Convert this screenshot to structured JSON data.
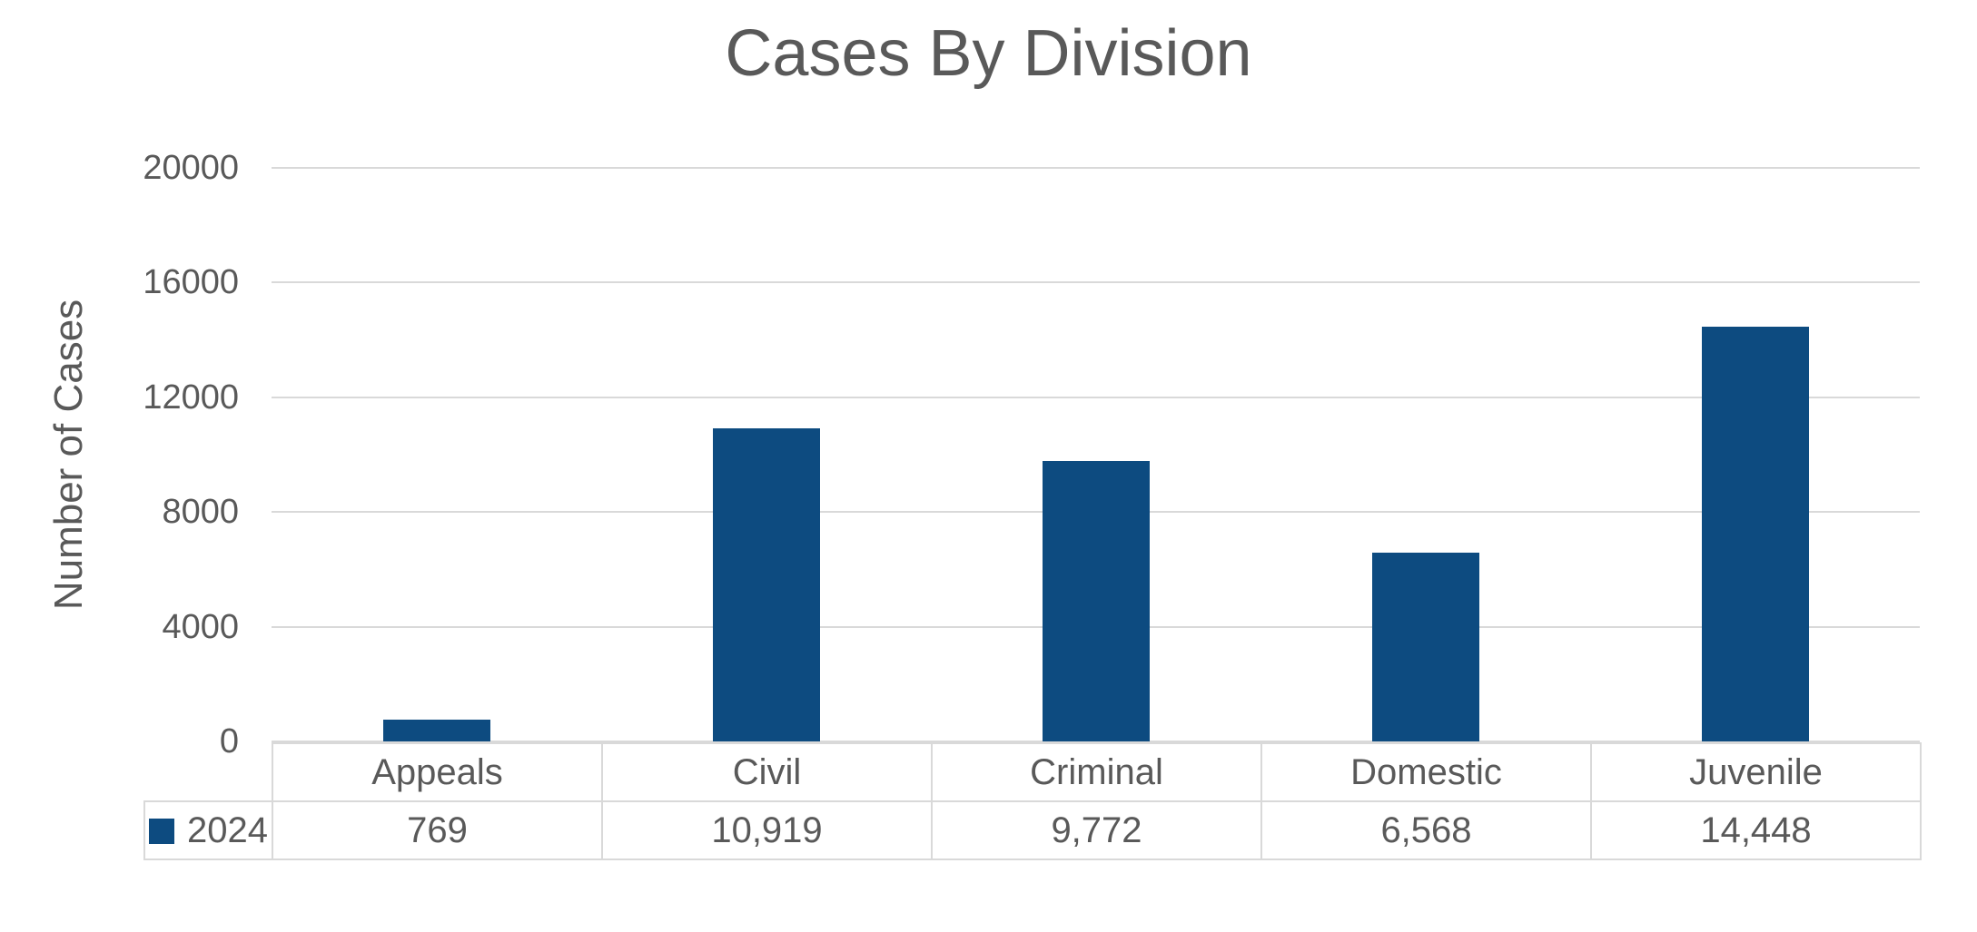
{
  "chart_data": {
    "type": "bar",
    "title": "Cases By Division",
    "ylabel": "Number of Cases",
    "xlabel": "",
    "categories": [
      "Appeals",
      "Civil",
      "Criminal",
      "Domestic",
      "Juvenile"
    ],
    "series": [
      {
        "name": "2024",
        "color": "#0D4B80",
        "values": [
          769,
          10919,
          9772,
          6568,
          14448
        ],
        "values_formatted": [
          "769",
          "10,919",
          "9,772",
          "6,568",
          "14,448"
        ]
      }
    ],
    "ylim": [
      0,
      20000
    ],
    "yticks": [
      0,
      4000,
      8000,
      12000,
      16000,
      20000
    ],
    "ytick_labels": [
      "0",
      "4000",
      "8000",
      "12000",
      "16000",
      "20000"
    ],
    "grid": true,
    "legend_position": "data-table-left",
    "colors": {
      "bar": "#0D4B80",
      "text": "#595959",
      "gridline": "#D9D9D9",
      "table_border": "#D9D9D9",
      "background": "#FFFFFF"
    }
  }
}
